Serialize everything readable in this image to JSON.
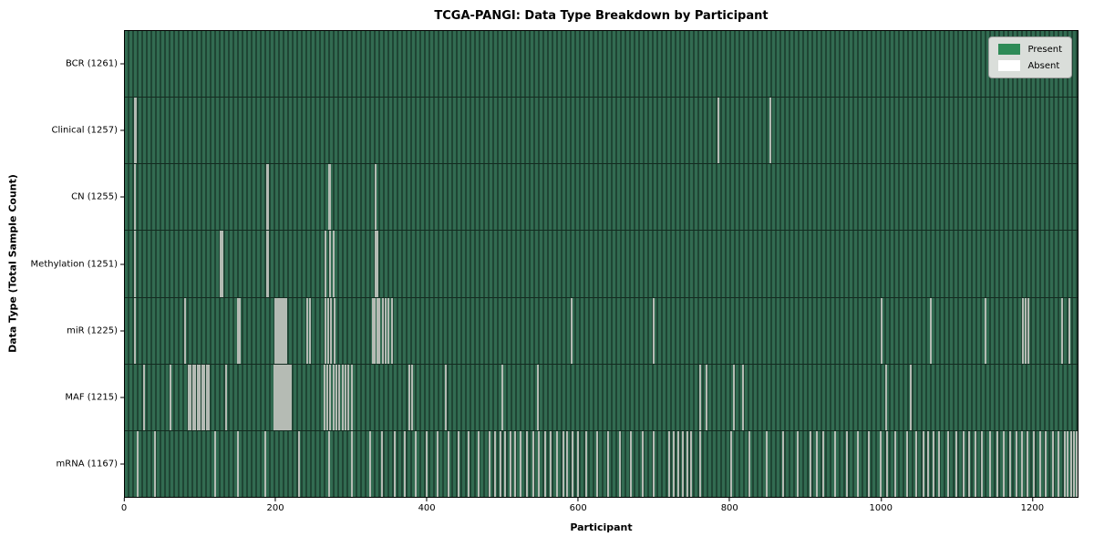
{
  "title": "TCGA-PANGI: Data Type Breakdown by Participant",
  "axes": {
    "xlabel": "Participant",
    "ylabel": "Data Type (Total Sample Count)"
  },
  "legend": {
    "present_label": "Present",
    "absent_label": "Absent"
  },
  "colors": {
    "present": "#2e8b57",
    "absent": "#ffffff",
    "bar_stripe_light": "#326b51",
    "bar_stripe_dark": "#1f4534",
    "absent_line": "#b5bbb4",
    "legend_bg": "#dadeda"
  },
  "chart_data": {
    "type": "heatmap",
    "title": "TCGA-PANGI: Data Type Breakdown by Participant",
    "xlabel": "Participant",
    "ylabel": "Data Type (Total Sample Count)",
    "legend_position": "upper right",
    "legend_entries": [
      {
        "label": "Present",
        "color": "#2e8b57"
      },
      {
        "label": "Absent",
        "color": "#ffffff"
      }
    ],
    "n_participants": 1261,
    "xlim": [
      0,
      1261
    ],
    "x_ticks": [
      0,
      200,
      400,
      600,
      800,
      1000,
      1200
    ],
    "rows": [
      {
        "data_type": "BCR",
        "label": "BCR (1261)",
        "total_sample_count": 1261,
        "absent_participants": []
      },
      {
        "data_type": "Clinical",
        "label": "Clinical (1257)",
        "total_sample_count": 1257,
        "absent_participants": [
          13,
          14,
          785,
          854
        ]
      },
      {
        "data_type": "CN",
        "label": "CN (1255)",
        "total_sample_count": 1255,
        "absent_participants": [
          13,
          188,
          190,
          270,
          272,
          332
        ]
      },
      {
        "data_type": "Methylation",
        "label": "Methylation (1251)",
        "total_sample_count": 1251,
        "absent_participants": [
          13,
          127,
          129,
          188,
          190,
          266,
          271,
          276,
          332,
          334
        ]
      },
      {
        "data_type": "miR",
        "label": "miR (1225)",
        "total_sample_count": 1225,
        "absent_participants": [
          13,
          80,
          150,
          152,
          199,
          201,
          203,
          205,
          207,
          209,
          211,
          213,
          241,
          245,
          265,
          269,
          273,
          277,
          328,
          331,
          334,
          337,
          341,
          345,
          349,
          353,
          591,
          700,
          1002,
          1067,
          1139,
          1188,
          1192,
          1196,
          1240,
          1250
        ]
      },
      {
        "data_type": "MAF",
        "label": "MAF (1215)",
        "total_sample_count": 1215,
        "absent_participants": [
          25,
          60,
          84,
          87,
          90,
          93,
          96,
          99,
          102,
          105,
          108,
          111,
          134,
          198,
          200,
          202,
          204,
          206,
          208,
          210,
          212,
          214,
          216,
          218,
          220,
          264,
          268,
          272,
          276,
          280,
          284,
          288,
          292,
          296,
          300,
          376,
          380,
          425,
          500,
          547,
          762,
          770,
          806,
          818,
          1008,
          1040
        ]
      },
      {
        "data_type": "mRNA",
        "label": "mRNA (1167)",
        "total_sample_count": 1167,
        "absent_participants": [
          17,
          40,
          120,
          150,
          186,
          230,
          270,
          300,
          324,
          340,
          357,
          370,
          385,
          400,
          414,
          428,
          442,
          455,
          468,
          483,
          490,
          497,
          503,
          510,
          517,
          524,
          532,
          540,
          548,
          556,
          564,
          572,
          580,
          585,
          592,
          600,
          610,
          625,
          640,
          655,
          670,
          685,
          700,
          720,
          726,
          732,
          738,
          744,
          749,
          761,
          802,
          826,
          850,
          871,
          890,
          908,
          916,
          924,
          940,
          956,
          970,
          985,
          1000,
          1009,
          1020,
          1035,
          1048,
          1057,
          1063,
          1070,
          1078,
          1090,
          1101,
          1110,
          1118,
          1126,
          1134,
          1145,
          1155,
          1163,
          1172,
          1180,
          1187,
          1195,
          1203,
          1211,
          1219,
          1228,
          1236,
          1244,
          1248,
          1252,
          1256,
          1260
        ]
      }
    ]
  }
}
